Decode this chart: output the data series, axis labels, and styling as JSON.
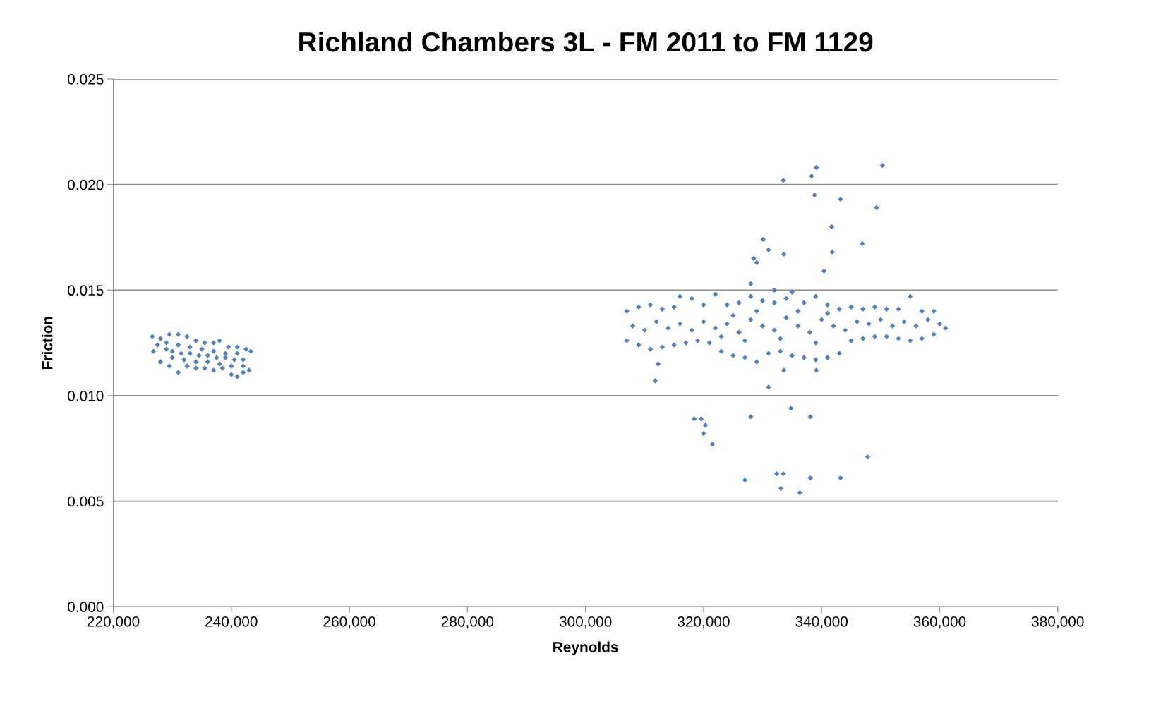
{
  "chart_data": {
    "type": "scatter",
    "title": "Richland Chambers 3L - FM 2011 to FM 1129",
    "xlabel": "Reynolds",
    "ylabel": "Friction",
    "xlim": [
      220000,
      380000
    ],
    "ylim": [
      0,
      0.025
    ],
    "xticks": [
      {
        "value": 220000,
        "label": "220,000"
      },
      {
        "value": 240000,
        "label": "240,000"
      },
      {
        "value": 260000,
        "label": "260,000"
      },
      {
        "value": 280000,
        "label": "280,000"
      },
      {
        "value": 300000,
        "label": "300,000"
      },
      {
        "value": 320000,
        "label": "320,000"
      },
      {
        "value": 340000,
        "label": "340,000"
      },
      {
        "value": 360000,
        "label": "360,000"
      },
      {
        "value": 380000,
        "label": "380,000"
      }
    ],
    "yticks": [
      {
        "value": 0,
        "label": "0.000"
      },
      {
        "value": 0.005,
        "label": "0.005"
      },
      {
        "value": 0.01,
        "label": "0.010"
      },
      {
        "value": 0.015,
        "label": "0.015"
      },
      {
        "value": 0.02,
        "label": "0.020"
      },
      {
        "value": 0.025,
        "label": "0.025"
      }
    ],
    "grid": "y",
    "marker": "diamond",
    "legend": false,
    "series": [
      {
        "color": "#4f81bd",
        "x": [
          226600,
          228000,
          229500,
          231000,
          232500,
          234000,
          235500,
          237000,
          238000,
          239500,
          241000,
          242500,
          243300,
          226800,
          228000,
          229500,
          231000,
          232500,
          234000,
          235500,
          237000,
          238500,
          240000,
          241000,
          242000,
          243000,
          227500,
          229000,
          230000,
          231500,
          233000,
          234500,
          236000,
          237500,
          239000,
          240500,
          242000,
          229000,
          231000,
          233000,
          235000,
          237000,
          239000,
          241000,
          230000,
          232000,
          234000,
          236000,
          238000,
          240000,
          242000,
          307000,
          309000,
          311000,
          313000,
          315000,
          316000,
          318000,
          320000,
          322000,
          324000,
          326000,
          328000,
          330000,
          332000,
          334000,
          335000,
          337000,
          339000,
          341000,
          343000,
          345000,
          347000,
          349000,
          351000,
          353000,
          355000,
          357000,
          359000,
          307000,
          309000,
          311000,
          313000,
          315000,
          317000,
          319000,
          321000,
          323000,
          325000,
          327000,
          329000,
          331000,
          333000,
          335000,
          337000,
          339000,
          341000,
          343000,
          345000,
          347000,
          349000,
          351000,
          353000,
          355000,
          357000,
          359000,
          361000,
          308000,
          310000,
          312000,
          314000,
          316000,
          318000,
          320000,
          322000,
          324000,
          326000,
          328000,
          330000,
          332000,
          334000,
          336000,
          338000,
          340000,
          342000,
          344000,
          346000,
          348000,
          350000,
          352000,
          354000,
          356000,
          358000,
          360000,
          325000,
          327000,
          333000,
          336000,
          339000,
          341000,
          329000,
          323000,
          333500,
          339100,
          338300,
          338800,
          343200,
          350300,
          349300,
          341700,
          330100,
          341800,
          331000,
          333600,
          346900,
          328500,
          329000,
          340400,
          328000,
          332000,
          347800,
          343200,
          327000,
          338100,
          332400,
          333500,
          333100,
          336300,
          334800,
          338100,
          328000,
          318400,
          319600,
          320300,
          320000,
          321500,
          331000,
          311800,
          333600,
          339100,
          312300
        ],
        "values": [
          0.0128,
          0.0127,
          0.0129,
          0.0129,
          0.0128,
          0.0126,
          0.0125,
          0.0125,
          0.0126,
          0.0123,
          0.0123,
          0.0122,
          0.0121,
          0.0121,
          0.0116,
          0.0114,
          0.0111,
          0.0114,
          0.0113,
          0.0113,
          0.0112,
          0.0113,
          0.011,
          0.0109,
          0.0111,
          0.0112,
          0.0124,
          0.0122,
          0.0121,
          0.012,
          0.012,
          0.0119,
          0.0119,
          0.0118,
          0.0118,
          0.0117,
          0.0117,
          0.0125,
          0.0124,
          0.0123,
          0.0122,
          0.0121,
          0.012,
          0.012,
          0.0118,
          0.0117,
          0.0116,
          0.0116,
          0.0115,
          0.0114,
          0.0114,
          0.014,
          0.0142,
          0.0143,
          0.0141,
          0.0142,
          0.0147,
          0.0146,
          0.0143,
          0.0148,
          0.0143,
          0.0144,
          0.0147,
          0.0145,
          0.0144,
          0.0146,
          0.0149,
          0.0144,
          0.0147,
          0.0143,
          0.0141,
          0.0142,
          0.0141,
          0.0142,
          0.0141,
          0.0141,
          0.0147,
          0.014,
          0.014,
          0.0126,
          0.0124,
          0.0122,
          0.0123,
          0.0124,
          0.0125,
          0.0126,
          0.0125,
          0.0121,
          0.0119,
          0.0118,
          0.0116,
          0.012,
          0.0121,
          0.0119,
          0.0118,
          0.0117,
          0.0118,
          0.012,
          0.0126,
          0.0127,
          0.0128,
          0.0128,
          0.0127,
          0.0126,
          0.0127,
          0.0129,
          0.0132,
          0.0133,
          0.0131,
          0.0135,
          0.0132,
          0.0134,
          0.0131,
          0.0135,
          0.0132,
          0.0134,
          0.013,
          0.0136,
          0.0133,
          0.0131,
          0.0137,
          0.0133,
          0.013,
          0.0136,
          0.0133,
          0.0131,
          0.0135,
          0.0134,
          0.0136,
          0.0133,
          0.0135,
          0.0133,
          0.0136,
          0.0134,
          0.0138,
          0.0126,
          0.0127,
          0.014,
          0.0125,
          0.0139,
          0.014,
          0.0128,
          0.0202,
          0.0208,
          0.0204,
          0.0195,
          0.0193,
          0.0209,
          0.0189,
          0.018,
          0.0174,
          0.0168,
          0.0169,
          0.0167,
          0.0172,
          0.0165,
          0.0163,
          0.0159,
          0.0153,
          0.015,
          0.0071,
          0.0061,
          0.006,
          0.0061,
          0.0063,
          0.0063,
          0.0056,
          0.0054,
          0.0094,
          0.009,
          0.009,
          0.0089,
          0.0089,
          0.0086,
          0.0082,
          0.0077,
          0.0104,
          0.0107,
          0.0112,
          0.0112,
          0.0115
        ]
      }
    ]
  }
}
